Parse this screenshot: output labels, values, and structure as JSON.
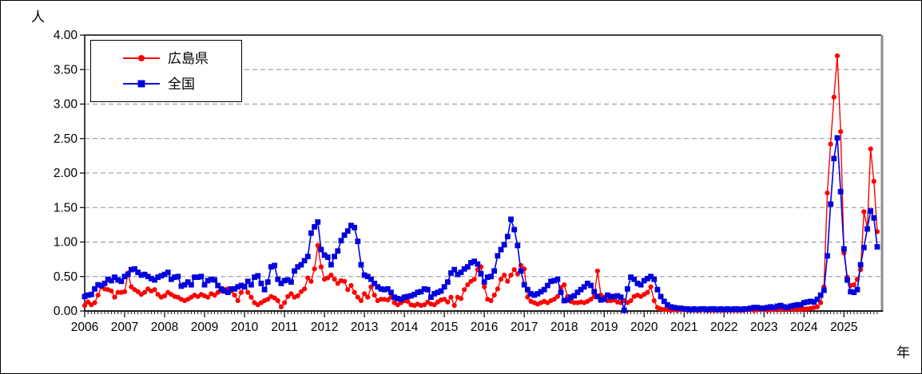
{
  "chart": {
    "y_axis_title": "人",
    "x_axis_title": "年",
    "legend": {
      "items": [
        {
          "label": "広島県",
          "color": "#ff0000",
          "marker": "circle"
        },
        {
          "label": "全国",
          "color": "#0000dd",
          "marker": "square"
        }
      ]
    }
  },
  "chart_data": {
    "type": "line",
    "title": "",
    "xlabel": "年",
    "ylabel": "人",
    "ylim": [
      0,
      4
    ],
    "y_tick_step": 0.5,
    "y_tick_labels": [
      "0.00",
      "0.50",
      "1.00",
      "1.50",
      "2.00",
      "2.50",
      "3.00",
      "3.50",
      "4.00"
    ],
    "x_tick_labels": [
      "2006",
      "2007",
      "2008",
      "2009",
      "2010",
      "2011",
      "2012",
      "2013",
      "2014",
      "2015",
      "2016",
      "2017",
      "2018",
      "2019",
      "2020",
      "2021",
      "2022",
      "2023",
      "2024",
      "2025"
    ],
    "x_unit": "monthly values from 2006-01 to 2025-11",
    "grid": "horizontal-dashed",
    "legend_position": "top-left-inside",
    "series": [
      {
        "name": "広島県",
        "color": "#ff0000",
        "marker": "circle",
        "values": [
          0.08,
          0.13,
          0.09,
          0.12,
          0.23,
          0.35,
          0.32,
          0.31,
          0.29,
          0.2,
          0.27,
          0.27,
          0.28,
          0.55,
          0.35,
          0.31,
          0.28,
          0.24,
          0.27,
          0.32,
          0.29,
          0.31,
          0.24,
          0.2,
          0.22,
          0.27,
          0.24,
          0.21,
          0.2,
          0.17,
          0.15,
          0.17,
          0.2,
          0.23,
          0.21,
          0.24,
          0.22,
          0.2,
          0.25,
          0.23,
          0.27,
          0.29,
          0.31,
          0.32,
          0.29,
          0.23,
          0.15,
          0.27,
          0.36,
          0.27,
          0.2,
          0.12,
          0.09,
          0.12,
          0.15,
          0.17,
          0.21,
          0.19,
          0.15,
          0.06,
          0.12,
          0.21,
          0.25,
          0.2,
          0.22,
          0.28,
          0.32,
          0.48,
          0.43,
          0.61,
          0.95,
          0.64,
          0.46,
          0.48,
          0.52,
          0.46,
          0.4,
          0.44,
          0.43,
          0.31,
          0.37,
          0.27,
          0.2,
          0.15,
          0.25,
          0.2,
          0.35,
          0.23,
          0.15,
          0.17,
          0.17,
          0.16,
          0.2,
          0.12,
          0.09,
          0.12,
          0.15,
          0.14,
          0.09,
          0.08,
          0.1,
          0.08,
          0.09,
          0.13,
          0.1,
          0.09,
          0.13,
          0.16,
          0.17,
          0.13,
          0.2,
          0.08,
          0.2,
          0.18,
          0.31,
          0.38,
          0.43,
          0.46,
          0.6,
          0.64,
          0.35,
          0.17,
          0.15,
          0.23,
          0.32,
          0.46,
          0.52,
          0.43,
          0.52,
          0.6,
          0.54,
          0.66,
          0.61,
          0.2,
          0.14,
          0.12,
          0.1,
          0.12,
          0.14,
          0.12,
          0.15,
          0.17,
          0.21,
          0.34,
          0.38,
          0.21,
          0.14,
          0.12,
          0.12,
          0.13,
          0.12,
          0.14,
          0.17,
          0.21,
          0.58,
          0.23,
          0.2,
          0.15,
          0.15,
          0.16,
          0.13,
          0.12,
          0.15,
          0.12,
          0.15,
          0.21,
          0.23,
          0.21,
          0.24,
          0.27,
          0.35,
          0.15,
          0.05,
          0.03,
          0.02,
          0.02,
          0.01,
          0.02,
          0.01,
          0.02,
          0.02,
          0.01,
          0.01,
          0.02,
          0.01,
          0.01,
          0.02,
          0.01,
          0.01,
          0.01,
          0.02,
          0.01,
          0.01,
          0.01,
          0.02,
          0.01,
          0.01,
          0.02,
          0.01,
          0.02,
          0.02,
          0.01,
          0.02,
          0.02,
          0.02,
          0.01,
          0.02,
          0.02,
          0.03,
          0.02,
          0.03,
          0.02,
          0.03,
          0.02,
          0.03,
          0.02,
          0.03,
          0.03,
          0.04,
          0.05,
          0.06,
          0.12,
          0.35,
          1.71,
          2.42,
          3.1,
          3.7,
          2.6,
          0.84,
          0.49,
          0.37,
          0.38,
          0.46,
          0.6,
          1.44,
          1.2,
          2.35,
          1.88,
          1.15
        ]
      },
      {
        "name": "全国",
        "color": "#0000dd",
        "marker": "square",
        "values": [
          0.21,
          0.23,
          0.24,
          0.32,
          0.38,
          0.37,
          0.4,
          0.46,
          0.44,
          0.49,
          0.45,
          0.43,
          0.5,
          0.53,
          0.6,
          0.61,
          0.56,
          0.52,
          0.53,
          0.5,
          0.47,
          0.45,
          0.49,
          0.51,
          0.53,
          0.56,
          0.46,
          0.49,
          0.5,
          0.36,
          0.38,
          0.42,
          0.38,
          0.49,
          0.49,
          0.5,
          0.38,
          0.44,
          0.46,
          0.45,
          0.37,
          0.32,
          0.29,
          0.27,
          0.32,
          0.32,
          0.35,
          0.37,
          0.35,
          0.43,
          0.38,
          0.49,
          0.51,
          0.4,
          0.31,
          0.42,
          0.64,
          0.66,
          0.46,
          0.4,
          0.44,
          0.45,
          0.42,
          0.58,
          0.64,
          0.67,
          0.73,
          0.79,
          1.13,
          1.22,
          1.29,
          0.89,
          0.81,
          0.78,
          0.67,
          0.79,
          0.87,
          1.02,
          1.1,
          1.16,
          1.24,
          1.21,
          1.01,
          0.67,
          0.52,
          0.5,
          0.46,
          0.4,
          0.35,
          0.32,
          0.31,
          0.32,
          0.27,
          0.2,
          0.18,
          0.17,
          0.2,
          0.21,
          0.22,
          0.24,
          0.27,
          0.28,
          0.32,
          0.31,
          0.2,
          0.25,
          0.27,
          0.29,
          0.35,
          0.42,
          0.55,
          0.6,
          0.53,
          0.56,
          0.61,
          0.64,
          0.7,
          0.72,
          0.68,
          0.54,
          0.42,
          0.49,
          0.5,
          0.58,
          0.8,
          0.89,
          0.96,
          1.08,
          1.33,
          1.18,
          0.95,
          0.58,
          0.38,
          0.31,
          0.25,
          0.23,
          0.25,
          0.28,
          0.31,
          0.37,
          0.43,
          0.44,
          0.46,
          0.27,
          0.15,
          0.16,
          0.2,
          0.22,
          0.27,
          0.31,
          0.35,
          0.4,
          0.37,
          0.28,
          0.21,
          0.16,
          0.17,
          0.23,
          0.21,
          0.21,
          0.22,
          0.2,
          0.01,
          0.32,
          0.49,
          0.46,
          0.4,
          0.38,
          0.44,
          0.47,
          0.5,
          0.46,
          0.31,
          0.21,
          0.14,
          0.09,
          0.06,
          0.05,
          0.04,
          0.04,
          0.03,
          0.03,
          0.02,
          0.03,
          0.02,
          0.03,
          0.03,
          0.02,
          0.03,
          0.03,
          0.02,
          0.03,
          0.02,
          0.03,
          0.02,
          0.03,
          0.03,
          0.02,
          0.03,
          0.03,
          0.04,
          0.05,
          0.05,
          0.04,
          0.04,
          0.05,
          0.06,
          0.05,
          0.07,
          0.08,
          0.06,
          0.05,
          0.07,
          0.08,
          0.09,
          0.09,
          0.12,
          0.13,
          0.14,
          0.13,
          0.17,
          0.23,
          0.3,
          0.8,
          1.55,
          2.21,
          2.51,
          1.73,
          0.9,
          0.45,
          0.28,
          0.27,
          0.31,
          0.67,
          0.92,
          1.19,
          1.45,
          1.35,
          0.93
        ]
      }
    ]
  }
}
